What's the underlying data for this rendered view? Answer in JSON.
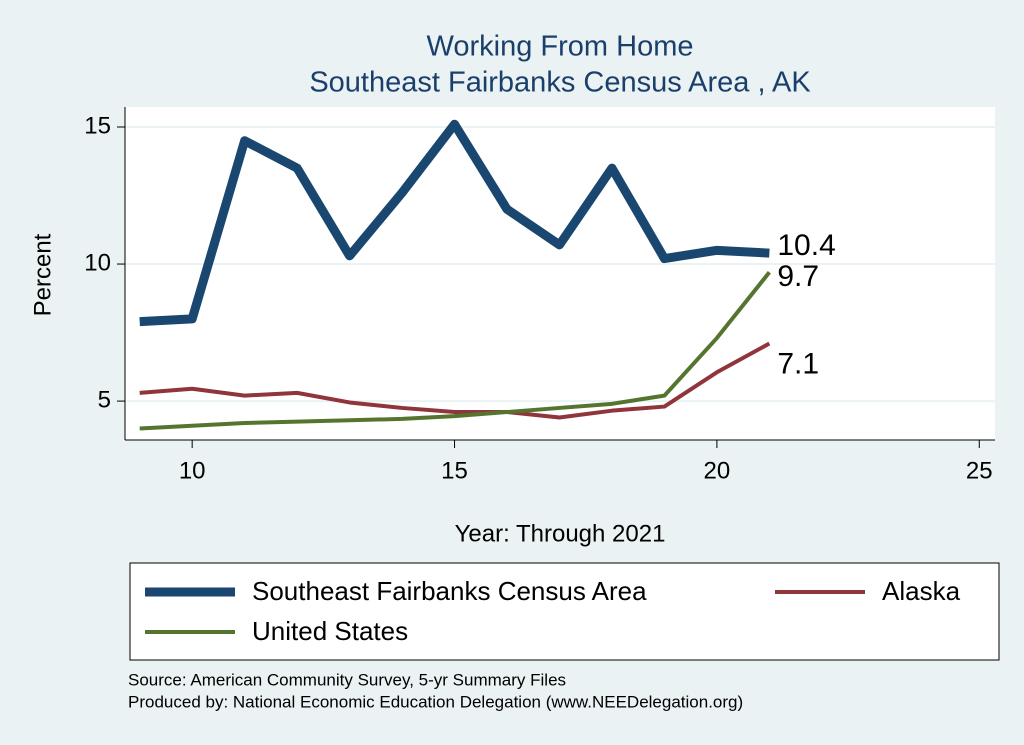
{
  "chart_data": {
    "type": "line",
    "title": "Working From Home",
    "subtitle": "Southeast Fairbanks Census Area , AK",
    "x_label": "Year: Through 2021",
    "y_label": "Percent",
    "x": [
      9,
      10,
      11,
      12,
      13,
      14,
      15,
      16,
      17,
      18,
      19,
      20,
      21
    ],
    "series": [
      {
        "name": "Southeast Fairbanks Census Area",
        "color": "#1a476f",
        "width": 9,
        "values": [
          7.9,
          8.0,
          14.5,
          13.5,
          10.3,
          12.6,
          15.1,
          12.0,
          10.7,
          13.5,
          10.2,
          10.5,
          10.4
        ],
        "value_labels": [
          null,
          null,
          null,
          null,
          null,
          null,
          null,
          null,
          null,
          null,
          null,
          null,
          "10.4"
        ]
      },
      {
        "name": "Alaska",
        "color": "#90353b",
        "width": 4,
        "values": [
          5.3,
          5.45,
          5.2,
          5.3,
          4.95,
          4.75,
          4.6,
          4.6,
          4.4,
          4.65,
          4.8,
          6.05,
          7.1
        ],
        "value_labels": [
          null,
          null,
          null,
          null,
          null,
          null,
          null,
          null,
          null,
          null,
          null,
          null,
          "7.1"
        ]
      },
      {
        "name": "United States",
        "color": "#55752f",
        "width": 4,
        "values": [
          4.0,
          4.1,
          4.2,
          4.25,
          4.3,
          4.35,
          4.45,
          4.6,
          4.75,
          4.9,
          5.2,
          7.3,
          9.7
        ],
        "value_labels": [
          null,
          null,
          null,
          null,
          null,
          null,
          null,
          null,
          null,
          null,
          null,
          null,
          "9.7"
        ]
      }
    ],
    "xlim": [
      8.72,
      25.3
    ],
    "xticks": [
      10,
      15,
      20,
      25
    ],
    "ylim": [
      3.58,
      15.73
    ],
    "yticks": [
      5,
      10,
      15
    ],
    "grid": true,
    "notes": [
      "Source: American Community Survey, 5-yr Summary Files",
      "Produced by: National Economic Education Delegation (www.NEEDelegation.org)"
    ]
  }
}
